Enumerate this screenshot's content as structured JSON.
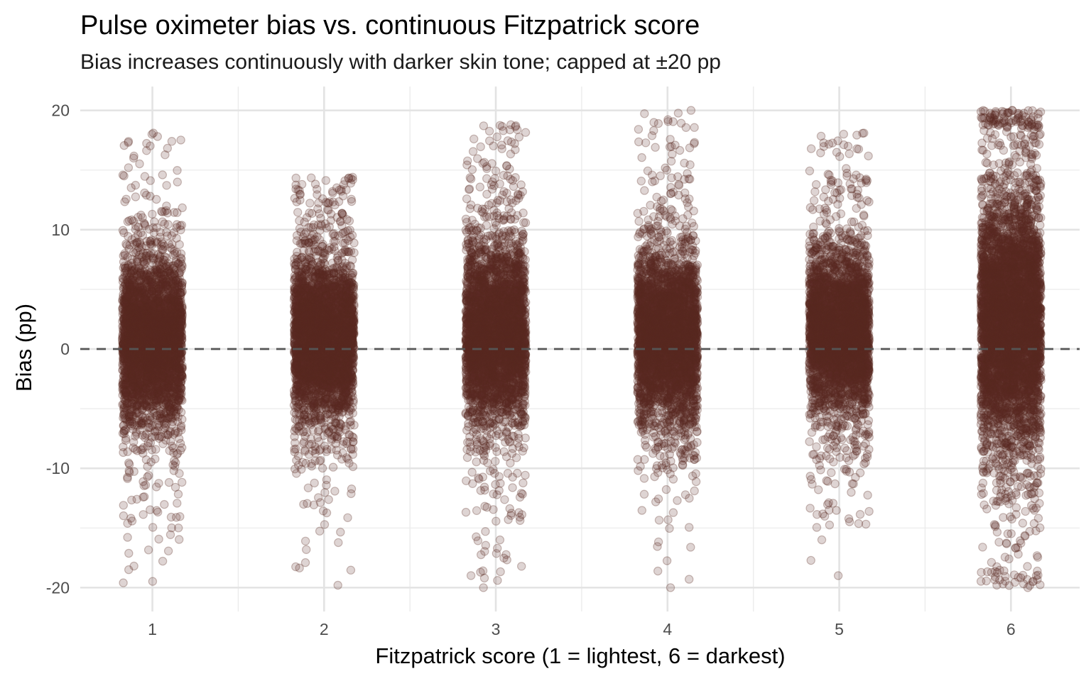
{
  "chart_data": {
    "type": "scatter",
    "title": "Pulse oximeter bias vs. continuous Fitzpatrick score",
    "subtitle": "Bias increases continuously with darker skin tone; capped at ±20 pp",
    "xlabel": "Fitzpatrick score (1 = lightest, 6 = darkest)",
    "ylabel": "Bias (pp)",
    "x_ticks": [
      "1",
      "2",
      "3",
      "4",
      "5",
      "6"
    ],
    "y_ticks": [
      "-20",
      "-10",
      "0",
      "10",
      "20"
    ],
    "xlim": [
      0.58,
      6.4
    ],
    "ylim": [
      -22,
      22
    ],
    "grid": true,
    "reference_line": {
      "y": 0,
      "style": "dashed"
    },
    "point_color": "#5a2a22",
    "point_alpha": 0.2,
    "jitter_width": 0.35,
    "series": [
      {
        "x": 1,
        "n": 3600,
        "median": 0.8,
        "core_range": [
          -6,
          8
        ],
        "min": -19.6,
        "max": 18.1
      },
      {
        "x": 2,
        "n": 3600,
        "median": 0.8,
        "core_range": [
          -6,
          8
        ],
        "min": -19.8,
        "max": 14.4
      },
      {
        "x": 3,
        "n": 3600,
        "median": 1.2,
        "core_range": [
          -7,
          8.5
        ],
        "min": -20,
        "max": 18.8
      },
      {
        "x": 4,
        "n": 3600,
        "median": 1.0,
        "core_range": [
          -7,
          8
        ],
        "min": -20,
        "max": 20
      },
      {
        "x": 5,
        "n": 3600,
        "median": 1.5,
        "core_range": [
          -6,
          8
        ],
        "min": -19,
        "max": 18.1
      },
      {
        "x": 6,
        "n": 4800,
        "median": 2.5,
        "core_range": [
          -10,
          12
        ],
        "min": -20,
        "max": 20
      }
    ]
  }
}
